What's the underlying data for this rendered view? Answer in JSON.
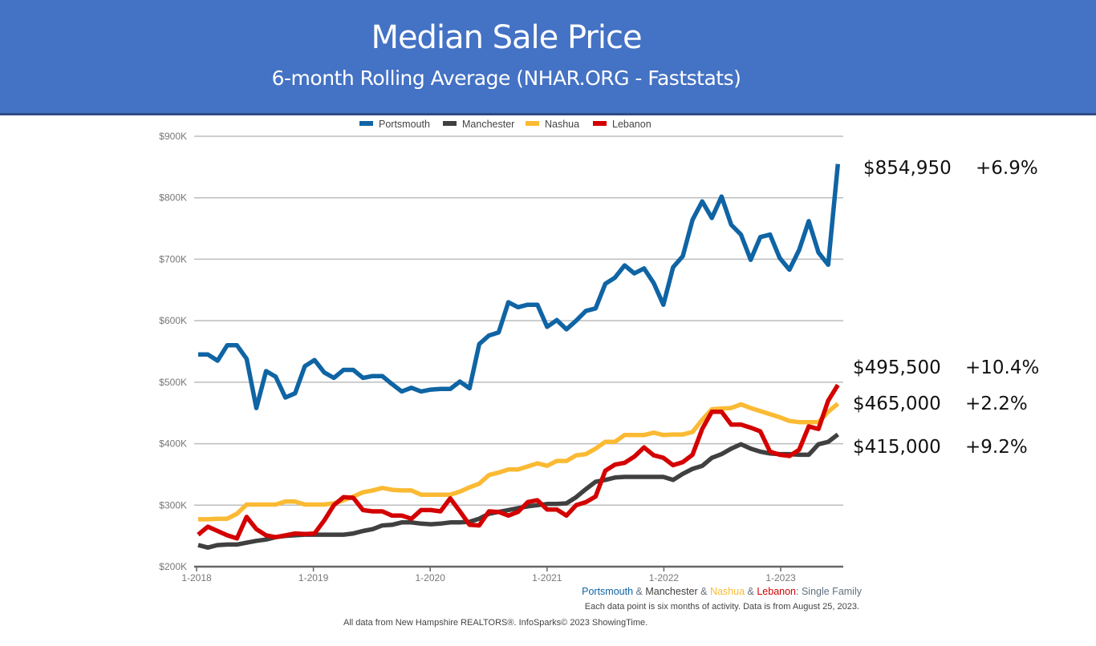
{
  "header": {
    "title": "Median Sale Price",
    "subtitle": "6-month Rolling Average (NHAR.ORG - Faststats)"
  },
  "chart_data": {
    "type": "line",
    "title": "Median Sale Price",
    "subtitle": "6-month Rolling Average (NHAR.ORG - Faststats)",
    "xlabel": "",
    "ylabel": "",
    "x_start": "1-2018",
    "x_end": "7-2023",
    "x_interval": "monthly",
    "x_tick_labels": [
      "1-2018",
      "1-2019",
      "1-2020",
      "1-2021",
      "1-2022",
      "1-2023"
    ],
    "y_tick_labels": [
      "$200K",
      "$300K",
      "$400K",
      "$500K",
      "$600K",
      "$700K",
      "$800K",
      "$900K"
    ],
    "ylim": [
      200000,
      900000
    ],
    "grid": true,
    "legend_position": "top-center",
    "series": [
      {
        "name": "Portsmouth",
        "color": "#0F64A4",
        "values": [
          545000,
          545000,
          535000,
          560000,
          560000,
          538000,
          458000,
          518000,
          509000,
          475000,
          482000,
          526000,
          536000,
          516000,
          507000,
          520000,
          520000,
          507000,
          510000,
          510000,
          497000,
          485000,
          491000,
          485000,
          488000,
          489000,
          489000,
          501000,
          490000,
          562000,
          576000,
          581000,
          630000,
          622000,
          626000,
          626000,
          590000,
          601000,
          586000,
          600000,
          616000,
          620000,
          660000,
          670000,
          690000,
          677000,
          685000,
          661000,
          626000,
          687000,
          705000,
          764000,
          794000,
          767000,
          802000,
          756000,
          740000,
          699000,
          736000,
          740000,
          702000,
          683000,
          715000,
          762000,
          711000,
          691000,
          854950
        ]
      },
      {
        "name": "Manchester",
        "color": "#404040",
        "values": [
          235000,
          231000,
          235000,
          236000,
          236000,
          239000,
          242000,
          244000,
          248000,
          250000,
          251000,
          252000,
          252000,
          252000,
          252000,
          252000,
          254000,
          258000,
          261000,
          267000,
          268000,
          272000,
          272000,
          270000,
          269000,
          270000,
          272000,
          272000,
          273000,
          278000,
          286000,
          289000,
          292000,
          295000,
          298000,
          300000,
          302000,
          302000,
          303000,
          313000,
          326000,
          338000,
          341000,
          345000,
          346000,
          346000,
          346000,
          346000,
          346000,
          341000,
          351000,
          359000,
          364000,
          377000,
          383000,
          392000,
          399000,
          392000,
          387000,
          384000,
          383000,
          383000,
          382000,
          382000,
          399000,
          403000,
          415000
        ]
      },
      {
        "name": "Nashua",
        "color": "#FBBA34",
        "values": [
          277000,
          277000,
          278000,
          278000,
          286000,
          301000,
          301000,
          301000,
          301000,
          306000,
          306000,
          301000,
          301000,
          301000,
          303000,
          308000,
          314000,
          321000,
          324000,
          328000,
          325000,
          324000,
          324000,
          317000,
          317000,
          317000,
          317000,
          322000,
          329000,
          335000,
          349000,
          353000,
          358000,
          358000,
          363000,
          368000,
          364000,
          372000,
          372000,
          381000,
          383000,
          392000,
          403000,
          403000,
          414000,
          414000,
          414000,
          418000,
          414000,
          415000,
          415000,
          419000,
          439000,
          456000,
          457000,
          458000,
          464000,
          458000,
          453000,
          448000,
          443000,
          437000,
          435000,
          435000,
          435000,
          452000,
          465000
        ]
      },
      {
        "name": "Lebanon",
        "color": "#D40000",
        "values": [
          252000,
          265000,
          258000,
          251000,
          246000,
          281000,
          261000,
          251000,
          248000,
          251000,
          254000,
          253000,
          254000,
          275000,
          300000,
          313000,
          312000,
          292000,
          290000,
          290000,
          283000,
          283000,
          278000,
          292000,
          292000,
          290000,
          311000,
          290000,
          268000,
          267000,
          290000,
          289000,
          283000,
          289000,
          305000,
          308000,
          293000,
          293000,
          283000,
          300000,
          305000,
          314000,
          356000,
          366000,
          369000,
          379000,
          394000,
          381000,
          377000,
          365000,
          370000,
          382000,
          424000,
          452000,
          452000,
          431000,
          431000,
          426000,
          420000,
          387000,
          382000,
          380000,
          390000,
          428000,
          424000,
          470000,
          495500
        ]
      }
    ],
    "annotations": [
      {
        "series": "Portsmouth",
        "value": "$854,950",
        "change": "+6.9%"
      },
      {
        "series": "Lebanon",
        "value": "$495,500",
        "change": "+10.4%"
      },
      {
        "series": "Nashua",
        "value": "$465,000",
        "change": "+2.2%"
      },
      {
        "series": "Manchester",
        "value": "$415,000",
        "change": "+9.2%"
      }
    ]
  },
  "caption": {
    "parts": [
      {
        "text": "Portsmouth",
        "color": "#0F64A4"
      },
      {
        "text": " & ",
        "color": "#607080"
      },
      {
        "text": "Manchester",
        "color": "#404040"
      },
      {
        "text": " & ",
        "color": "#607080"
      },
      {
        "text": "Nashua",
        "color": "#FBBA34"
      },
      {
        "text": " & ",
        "color": "#607080"
      },
      {
        "text": "Lebanon",
        "color": "#D40000"
      },
      {
        "text": ": Single Family",
        "color": "#607080"
      }
    ],
    "note": "Each data point is six months of activity. Data is from August 25, 2023."
  },
  "footer": "All data from New Hampshire REALTORS®. InfoSparks© 2023 ShowingTime."
}
